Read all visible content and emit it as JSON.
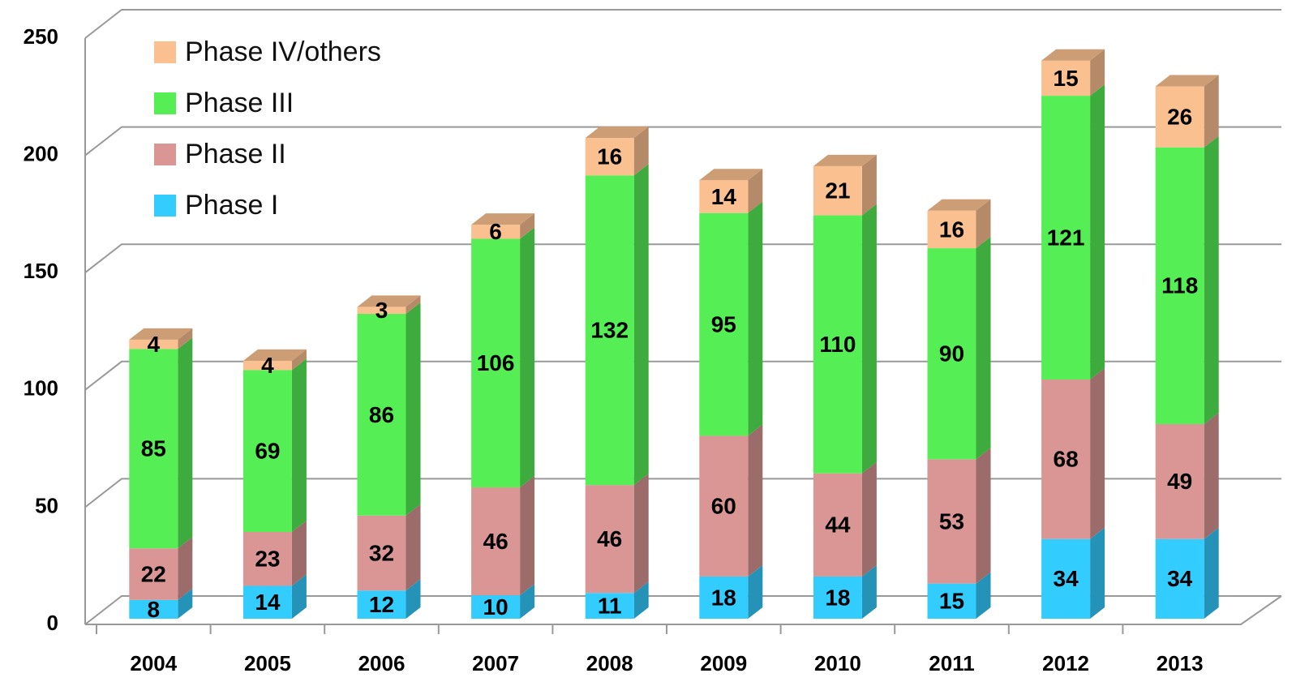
{
  "chart_data": {
    "type": "stacked_bar_3d",
    "categories": [
      "2004",
      "2005",
      "2006",
      "2007",
      "2008",
      "2009",
      "2010",
      "2011",
      "2012",
      "2013"
    ],
    "series": [
      {
        "name": "Phase I",
        "color": "#33ccff",
        "values": [
          8,
          14,
          12,
          10,
          11,
          18,
          18,
          15,
          34,
          34
        ]
      },
      {
        "name": "Phase II",
        "color": "#d99694",
        "values": [
          22,
          23,
          32,
          46,
          46,
          60,
          44,
          53,
          68,
          49
        ]
      },
      {
        "name": "Phase III",
        "color": "#55ee55",
        "values": [
          85,
          69,
          86,
          106,
          132,
          95,
          110,
          90,
          121,
          118
        ]
      },
      {
        "name": "Phase IV/others",
        "color": "#fac090",
        "values": [
          4,
          4,
          3,
          6,
          16,
          14,
          21,
          16,
          15,
          26
        ]
      }
    ],
    "ylim": [
      0,
      250
    ],
    "yticks": [
      0,
      50,
      100,
      150,
      200,
      250
    ],
    "grid": true,
    "legend": "top-left"
  }
}
